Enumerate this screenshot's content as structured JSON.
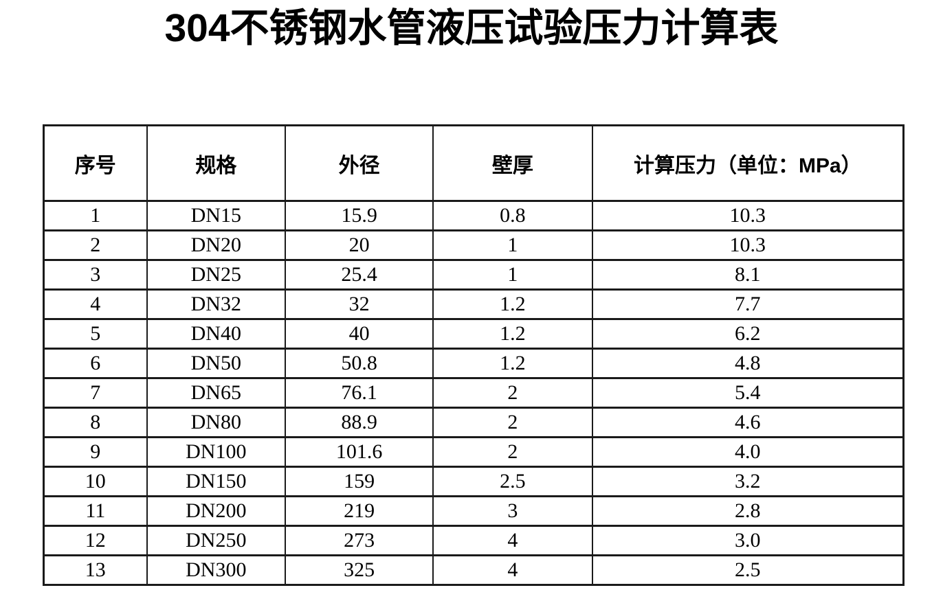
{
  "title": "304不锈钢水管液压试验压力计算表",
  "colors": {
    "text": "#000000",
    "background": "#ffffff",
    "border": "#1a1a1a"
  },
  "table": {
    "headers": [
      "序号",
      "规格",
      "外径",
      "壁厚",
      "计算压力（单位：MPa）"
    ],
    "column_widths_pct": [
      12.0,
      16.1,
      17.2,
      18.5,
      36.2
    ],
    "rows": [
      [
        "1",
        "DN15",
        "15.9",
        "0.8",
        "10.3"
      ],
      [
        "2",
        "DN20",
        "20",
        "1",
        "10.3"
      ],
      [
        "3",
        "DN25",
        "25.4",
        "1",
        "8.1"
      ],
      [
        "4",
        "DN32",
        "32",
        "1.2",
        "7.7"
      ],
      [
        "5",
        "DN40",
        "40",
        "1.2",
        "6.2"
      ],
      [
        "6",
        "DN50",
        "50.8",
        "1.2",
        "4.8"
      ],
      [
        "7",
        "DN65",
        "76.1",
        "2",
        "5.4"
      ],
      [
        "8",
        "DN80",
        "88.9",
        "2",
        "4.6"
      ],
      [
        "9",
        "DN100",
        "101.6",
        "2",
        "4.0"
      ],
      [
        "10",
        "DN150",
        "159",
        "2.5",
        "3.2"
      ],
      [
        "11",
        "DN200",
        "219",
        "3",
        "2.8"
      ],
      [
        "12",
        "DN250",
        "273",
        "4",
        "3.0"
      ],
      [
        "13",
        "DN300",
        "325",
        "4",
        "2.5"
      ]
    ]
  }
}
